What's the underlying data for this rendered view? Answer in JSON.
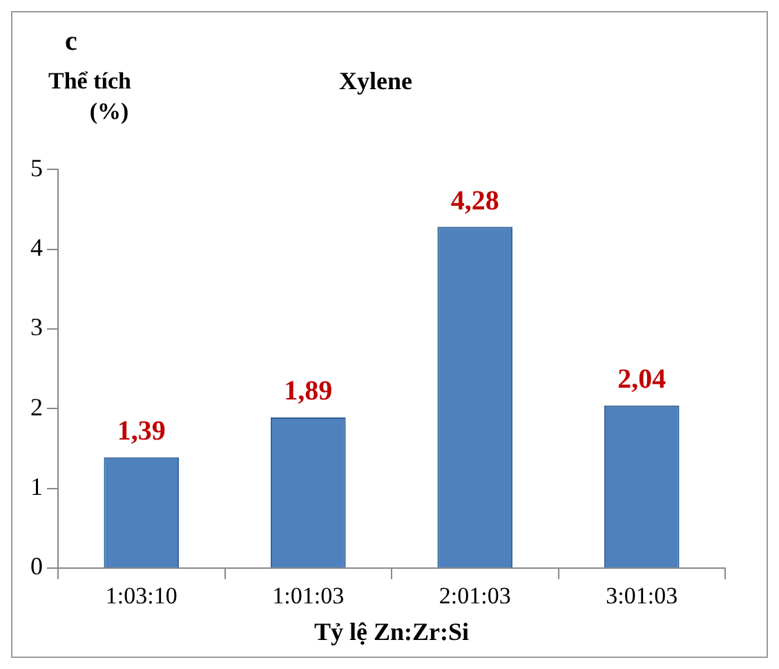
{
  "chart_data": {
    "type": "bar",
    "title": "Xylene",
    "ylabel": "Thể tích (%)",
    "xlabel": "Tỷ lệ Zn:Zr:Si",
    "annotations": [
      "c"
    ],
    "categories": [
      "1:03:10",
      "1:01:03",
      "2:01:03",
      "3:01:03"
    ],
    "values": [
      1.39,
      1.89,
      4.28,
      2.04
    ],
    "color": "#4f81bd",
    "value_labels": [
      "1,39",
      "1,89",
      "4,28",
      "2,04"
    ],
    "ylim": [
      0,
      5
    ],
    "yticks": [
      0,
      1,
      2,
      3,
      4,
      5
    ],
    "grid": false,
    "legend": false
  }
}
